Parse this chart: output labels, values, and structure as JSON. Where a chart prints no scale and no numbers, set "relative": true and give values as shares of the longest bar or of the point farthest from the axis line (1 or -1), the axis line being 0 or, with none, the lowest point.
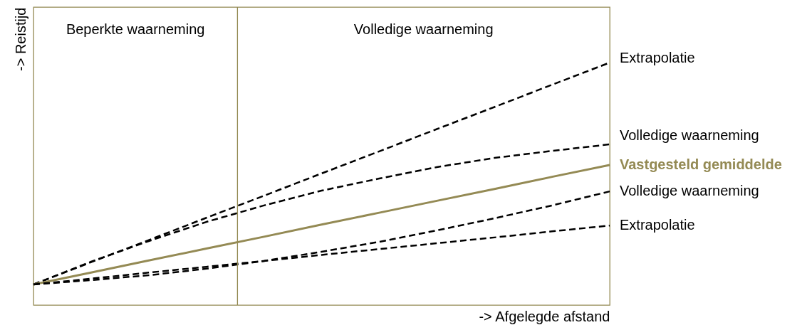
{
  "chart_data": {
    "type": "line",
    "relative": true,
    "xlabel": "-> Afgelegde afstand",
    "ylabel": "-> Reistijd",
    "categories": [
      null,
      null,
      null,
      null,
      null,
      null,
      null,
      null,
      null,
      null,
      null
    ],
    "annotations": [
      "Beperkte waarneming",
      "Volledige waarneming"
    ],
    "grid": false,
    "series": [
      {
        "name": "Extrapolatie",
        "color": "#000000",
        "line_style": "dashed",
        "values": [
          0.085,
          0.177,
          0.268,
          0.36,
          0.451,
          0.543,
          0.634,
          0.726,
          0.817,
          0.909,
          1.0
        ]
      },
      {
        "name": "Volledige waarneming",
        "color": "#000000",
        "line_style": "dashed",
        "values": [
          0.085,
          0.179,
          0.264,
          0.343,
          0.411,
          0.472,
          0.522,
          0.569,
          0.607,
          0.636,
          0.663
        ]
      },
      {
        "name": "Vastgesteld gemiddelde",
        "color": "#948a54",
        "line_style": "solid",
        "values": [
          0.085,
          0.134,
          0.184,
          0.233,
          0.282,
          0.332,
          0.381,
          0.43,
          0.479,
          0.529,
          0.578
        ]
      },
      {
        "name": "Volledige waarneming",
        "color": "#000000",
        "line_style": "dashed",
        "values": [
          0.085,
          0.103,
          0.123,
          0.15,
          0.182,
          0.22,
          0.261,
          0.308,
          0.358,
          0.411,
          0.469
        ]
      },
      {
        "name": "Extrapolatie",
        "color": "#000000",
        "line_style": "dashed",
        "values": [
          0.085,
          0.109,
          0.134,
          0.158,
          0.182,
          0.207,
          0.231,
          0.255,
          0.279,
          0.304,
          0.328
        ]
      }
    ]
  }
}
